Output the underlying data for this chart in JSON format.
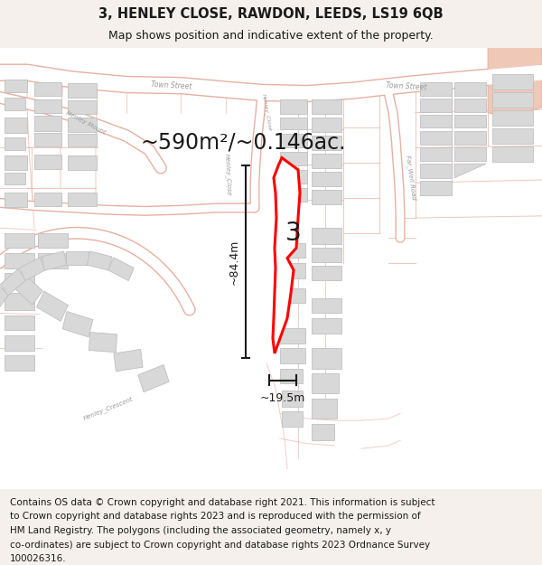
{
  "title_line1": "3, HENLEY CLOSE, RAWDON, LEEDS, LS19 6QB",
  "title_line2": "Map shows position and indicative extent of the property.",
  "area_text": "~590m²/~0.146ac.",
  "width_label": "~19.5m",
  "height_label": "~84.4m",
  "number_label": "3",
  "footer_lines": [
    "Contains OS data © Crown copyright and database right 2021. This information is subject",
    "to Crown copyright and database rights 2023 and is reproduced with the permission of",
    "HM Land Registry. The polygons (including the associated geometry, namely x, y",
    "co-ordinates) are subject to Crown copyright and database rights 2023 Ordnance Survey",
    "100026316."
  ],
  "bg_color": "#f5f0eb",
  "map_bg": "#ffffff",
  "road_stroke": "#e8b0a0",
  "road_fill": "#f5e8e4",
  "building_fill": "#d8d8d8",
  "building_edge": "#c0c0c0",
  "property_color": "#ff0000",
  "dim_color": "#1a1a1a",
  "text_color": "#333333",
  "label_color": "#999999",
  "title_fontsize": 10.5,
  "subtitle_fontsize": 9,
  "footer_fontsize": 7.5,
  "area_fontsize": 17,
  "number_fontsize": 20,
  "dim_fontsize": 9,
  "road_lw": 1.0,
  "property_lw": 2.2
}
